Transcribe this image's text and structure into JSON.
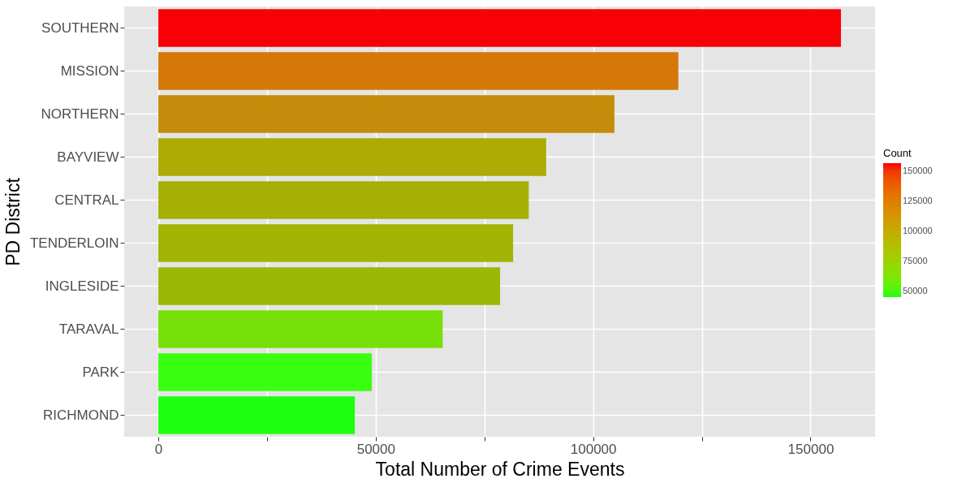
{
  "chart_data": {
    "type": "bar",
    "orientation": "horizontal",
    "xlabel": "Total Number of Crime Events",
    "ylabel": "PD District",
    "legend_title": "Count",
    "categories": [
      "SOUTHERN",
      "MISSION",
      "NORTHERN",
      "BAYVIEW",
      "CENTRAL",
      "TENDERLOIN",
      "INGLESIDE",
      "TARAVAL",
      "PARK",
      "RICHMOND"
    ],
    "values": [
      157000,
      119600,
      104900,
      89200,
      85200,
      81600,
      78600,
      65400,
      49100,
      45200
    ],
    "colors": [
      "#f90006",
      "#d57808",
      "#c48c0a",
      "#adaa04",
      "#a6b004",
      "#a2b404",
      "#9cb806",
      "#78e009",
      "#3bff10",
      "#1fff10"
    ],
    "xlim": [
      -7850,
      164850
    ],
    "xticks": [
      0,
      {
        "value": 25000,
        "label": null
      },
      50000,
      {
        "value": 75000,
        "label": null
      },
      100000,
      {
        "value": 125000,
        "label": null
      },
      150000
    ],
    "clim": [
      45200,
      157000
    ],
    "cticks": [
      50000,
      75000,
      100000,
      125000,
      150000
    ],
    "grid": true
  }
}
